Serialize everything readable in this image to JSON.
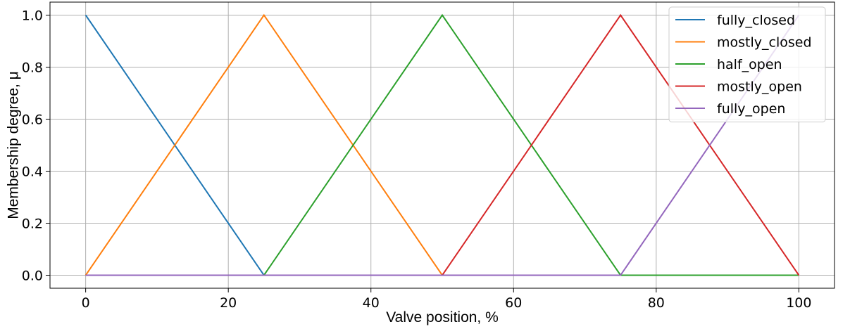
{
  "chart_data": {
    "type": "line",
    "xlabel": "Valve position, %",
    "ylabel": "Membership degree, μ",
    "xlim": [
      -5,
      105
    ],
    "ylim": [
      -0.05,
      1.05
    ],
    "xticks": [
      0,
      20,
      40,
      60,
      80,
      100
    ],
    "yticks": [
      0.0,
      0.2,
      0.4,
      0.6,
      0.8,
      1.0
    ],
    "xtick_labels": [
      "0",
      "20",
      "40",
      "60",
      "80",
      "100"
    ],
    "ytick_labels": [
      "0.0",
      "0.2",
      "0.4",
      "0.6",
      "0.8",
      "1.0"
    ],
    "grid": true,
    "legend_position": "top-right",
    "series": [
      {
        "name": "fully_closed",
        "color": "#1f77b4",
        "x": [
          0,
          25,
          100
        ],
        "y": [
          1,
          0,
          0
        ]
      },
      {
        "name": "mostly_closed",
        "color": "#ff7f0e",
        "x": [
          0,
          25,
          50,
          100
        ],
        "y": [
          0,
          1,
          0,
          0
        ]
      },
      {
        "name": "half_open",
        "color": "#2ca02c",
        "x": [
          0,
          25,
          50,
          75,
          100
        ],
        "y": [
          0,
          0,
          1,
          0,
          0
        ]
      },
      {
        "name": "mostly_open",
        "color": "#d62728",
        "x": [
          0,
          50,
          75,
          100
        ],
        "y": [
          0,
          0,
          1,
          0
        ]
      },
      {
        "name": "fully_open",
        "color": "#9467bd",
        "x": [
          0,
          75,
          100
        ],
        "y": [
          0,
          0,
          1
        ]
      }
    ]
  }
}
